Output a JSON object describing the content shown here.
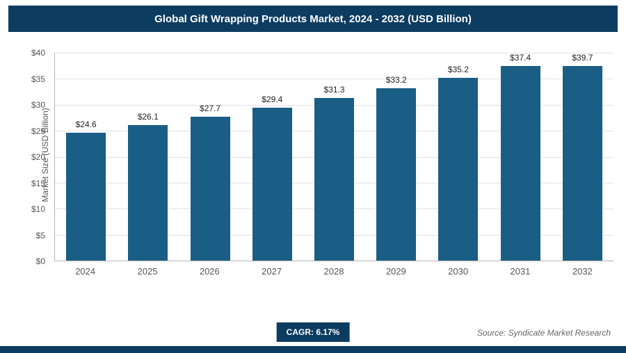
{
  "header": {
    "title": "Global Gift Wrapping Products Market, 2024 - 2032 (USD Billion)"
  },
  "chart_data": {
    "type": "bar",
    "title": "Global Gift Wrapping Products Market, 2024 - 2032 (USD Billion)",
    "categories": [
      "2024",
      "2025",
      "2026",
      "2027",
      "2028",
      "2029",
      "2030",
      "2031",
      "2032"
    ],
    "values": [
      24.6,
      26.1,
      27.7,
      29.4,
      31.3,
      33.2,
      35.2,
      37.4,
      39.7
    ],
    "value_labels": [
      "$24.6",
      "$26.1",
      "$27.7",
      "$29.4",
      "$31.3",
      "$33.2",
      "$35.2",
      "$37.4",
      "$39.7"
    ],
    "xlabel": "",
    "ylabel": "Market Size (USD Billion)",
    "ylim": [
      0,
      40
    ],
    "grid": true,
    "legend": false,
    "yticks": [
      {
        "value": 0,
        "label": "$0"
      },
      {
        "value": 5,
        "label": "$5"
      },
      {
        "value": 10,
        "label": "$10"
      },
      {
        "value": 15,
        "label": "$15"
      },
      {
        "value": 20,
        "label": "$20"
      },
      {
        "value": 25,
        "label": "$25"
      },
      {
        "value": 30,
        "label": "$30"
      },
      {
        "value": 35,
        "label": "$35"
      },
      {
        "value": 40,
        "label": "$40"
      }
    ]
  },
  "footer": {
    "cagr_label": "CAGR: 6.17%",
    "source": "Source: Syndicate Market Research"
  },
  "colors": {
    "header_bg": "#0d3c61",
    "bar_color": "#1a5d85",
    "gridline": "#e2e2e2",
    "axis_text": "#555555",
    "value_label_text": "#222222"
  }
}
